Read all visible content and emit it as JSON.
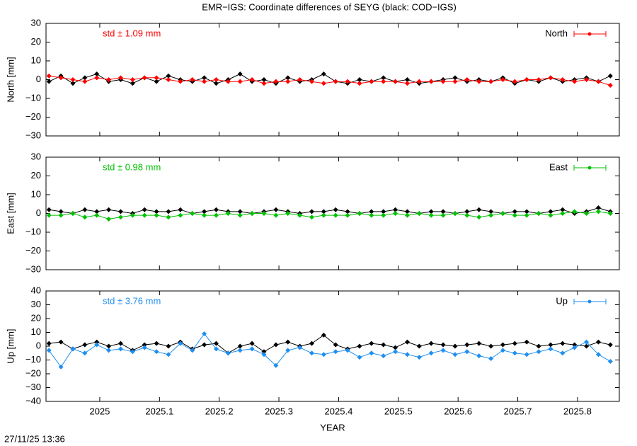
{
  "title": "EMR−IGS: Coordinate differences of SEYG (black: COD−IGS)",
  "timestamp": "27/11/25 13:36",
  "chart_data": [
    {
      "type": "line",
      "ylabel": "North [mm]",
      "annotation": "std ± 1.09 mm",
      "xlim": [
        2024.91,
        2025.87
      ],
      "ylim": [
        -30,
        30
      ],
      "yticks": [
        {
          "value": -30,
          "label": "−30"
        },
        {
          "value": -20,
          "label": "−20"
        },
        {
          "value": -10,
          "label": "−10"
        },
        0,
        10,
        20,
        30
      ],
      "x": [
        2024.915,
        2024.935,
        2024.955,
        2024.975,
        2024.995,
        2025.015,
        2025.035,
        2025.055,
        2025.075,
        2025.095,
        2025.115,
        2025.135,
        2025.155,
        2025.175,
        2025.195,
        2025.215,
        2025.235,
        2025.255,
        2025.275,
        2025.295,
        2025.315,
        2025.335,
        2025.355,
        2025.375,
        2025.395,
        2025.415,
        2025.435,
        2025.455,
        2025.475,
        2025.495,
        2025.515,
        2025.535,
        2025.555,
        2025.575,
        2025.595,
        2025.615,
        2025.635,
        2025.655,
        2025.675,
        2025.695,
        2025.715,
        2025.735,
        2025.755,
        2025.775,
        2025.795,
        2025.815,
        2025.835,
        2025.855
      ],
      "series": [
        {
          "color": "#000000",
          "values": [
            -1,
            2,
            -2,
            1,
            3,
            -1,
            0,
            -2,
            1,
            -1,
            2,
            0,
            -1,
            1,
            -2,
            0,
            3,
            -1,
            0,
            -2,
            1,
            -1,
            0,
            3,
            -1,
            -2,
            0,
            -1,
            1,
            -1,
            0,
            -2,
            -1,
            0,
            1,
            -1,
            0,
            -1,
            1,
            -2,
            0,
            -1,
            1,
            -1,
            0,
            1,
            -1,
            2
          ]
        },
        {
          "name": "North",
          "color": "#ff0000",
          "values": [
            2,
            1,
            0,
            -1,
            1,
            0,
            1,
            0,
            1,
            1,
            0,
            -1,
            0,
            -1,
            0,
            -1,
            -1,
            0,
            -2,
            -1,
            -1,
            0,
            -1,
            -2,
            -1,
            -1,
            -2,
            -1,
            -1,
            -1,
            -2,
            -1,
            -1,
            -1,
            -1,
            0,
            -1,
            -1,
            0,
            -1,
            0,
            0,
            1,
            0,
            -1,
            0,
            -1,
            -3
          ]
        }
      ]
    },
    {
      "type": "line",
      "ylabel": "East [mm]",
      "annotation": "std ± 0.98 mm",
      "xlim": [
        2024.91,
        2025.87
      ],
      "ylim": [
        -30,
        30
      ],
      "yticks": [
        {
          "value": -30,
          "label": "−30"
        },
        {
          "value": -20,
          "label": "−20"
        },
        {
          "value": -10,
          "label": "−10"
        },
        0,
        10,
        20,
        30
      ],
      "x": [
        2024.915,
        2024.935,
        2024.955,
        2024.975,
        2024.995,
        2025.015,
        2025.035,
        2025.055,
        2025.075,
        2025.095,
        2025.115,
        2025.135,
        2025.155,
        2025.175,
        2025.195,
        2025.215,
        2025.235,
        2025.255,
        2025.275,
        2025.295,
        2025.315,
        2025.335,
        2025.355,
        2025.375,
        2025.395,
        2025.415,
        2025.435,
        2025.455,
        2025.475,
        2025.495,
        2025.515,
        2025.535,
        2025.555,
        2025.575,
        2025.595,
        2025.615,
        2025.635,
        2025.655,
        2025.675,
        2025.695,
        2025.715,
        2025.735,
        2025.755,
        2025.775,
        2025.795,
        2025.815,
        2025.835,
        2025.855
      ],
      "series": [
        {
          "color": "#000000",
          "values": [
            2,
            1,
            0,
            2,
            1,
            2,
            1,
            0,
            2,
            1,
            1,
            2,
            0,
            1,
            2,
            1,
            1,
            0,
            1,
            2,
            1,
            0,
            1,
            1,
            2,
            1,
            0,
            1,
            1,
            2,
            1,
            0,
            1,
            1,
            0,
            1,
            2,
            1,
            0,
            1,
            1,
            0,
            1,
            2,
            0,
            1,
            3,
            1
          ]
        },
        {
          "name": "East",
          "color": "#00c000",
          "values": [
            -1,
            -1,
            0,
            -2,
            -1,
            -3,
            -2,
            -1,
            -1,
            -1,
            -2,
            -1,
            0,
            -1,
            -1,
            0,
            -1,
            0,
            0,
            -1,
            0,
            -1,
            -2,
            -1,
            -1,
            -1,
            0,
            -1,
            -1,
            0,
            -1,
            0,
            -1,
            -1,
            0,
            -1,
            -2,
            -1,
            0,
            -1,
            -1,
            0,
            -1,
            0,
            1,
            0,
            1,
            0
          ]
        }
      ]
    },
    {
      "type": "line",
      "ylabel": "Up [mm]",
      "annotation": "std ± 3.76 mm",
      "xlabel": "YEAR",
      "xlim": [
        2024.91,
        2025.87
      ],
      "ylim": [
        -40,
        40
      ],
      "xticks": [
        2025,
        2025.1,
        2025.2,
        2025.3,
        2025.4,
        2025.5,
        2025.6,
        2025.7,
        2025.8
      ],
      "yticks": [
        {
          "value": -40,
          "label": "−40"
        },
        {
          "value": -30,
          "label": "−30"
        },
        {
          "value": -20,
          "label": "−20"
        },
        {
          "value": -10,
          "label": "−10"
        },
        0,
        10,
        20,
        30,
        40
      ],
      "x": [
        2024.915,
        2024.935,
        2024.955,
        2024.975,
        2024.995,
        2025.015,
        2025.035,
        2025.055,
        2025.075,
        2025.095,
        2025.115,
        2025.135,
        2025.155,
        2025.175,
        2025.195,
        2025.215,
        2025.235,
        2025.255,
        2025.275,
        2025.295,
        2025.315,
        2025.335,
        2025.355,
        2025.375,
        2025.395,
        2025.415,
        2025.435,
        2025.455,
        2025.475,
        2025.495,
        2025.515,
        2025.535,
        2025.555,
        2025.575,
        2025.595,
        2025.615,
        2025.635,
        2025.655,
        2025.675,
        2025.695,
        2025.715,
        2025.735,
        2025.755,
        2025.775,
        2025.795,
        2025.815,
        2025.835,
        2025.855
      ],
      "series": [
        {
          "color": "#000000",
          "values": [
            2,
            3,
            -2,
            1,
            3,
            0,
            2,
            -3,
            1,
            2,
            0,
            3,
            -2,
            1,
            2,
            -5,
            0,
            2,
            -4,
            1,
            3,
            0,
            2,
            8,
            1,
            -2,
            0,
            2,
            1,
            -1,
            3,
            0,
            2,
            1,
            0,
            1,
            2,
            0,
            1,
            2,
            3,
            0,
            1,
            2,
            1,
            0,
            3,
            1
          ]
        },
        {
          "name": "Up",
          "color": "#1e8ff0",
          "values": [
            -3,
            -15,
            -2,
            -5,
            1,
            -3,
            -2,
            -4,
            -1,
            -4,
            -6,
            2,
            -3,
            9,
            -2,
            -5,
            -3,
            -2,
            -6,
            -14,
            -3,
            -1,
            -5,
            -6,
            -4,
            -3,
            -8,
            -5,
            -7,
            -4,
            -6,
            -8,
            -5,
            -3,
            -6,
            -4,
            -7,
            -9,
            -3,
            -5,
            -6,
            -4,
            -2,
            -5,
            -1,
            3,
            -6,
            -11
          ]
        }
      ]
    }
  ]
}
